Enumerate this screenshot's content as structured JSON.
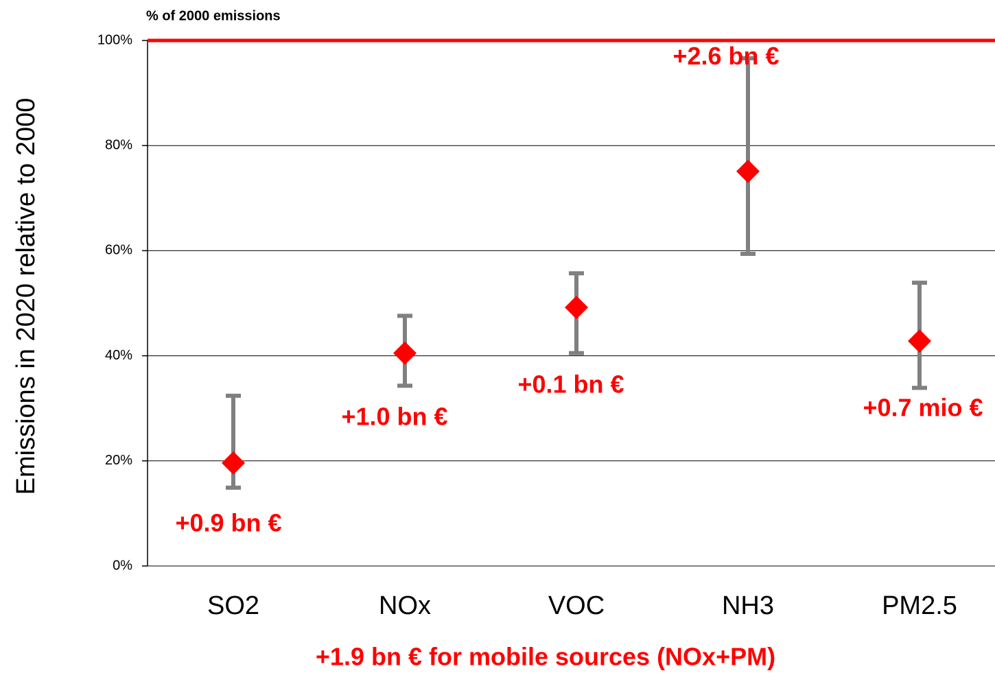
{
  "chart_data": {
    "type": "errorpoint",
    "subtitle": "% of 2000 emissions",
    "y_label": "Emissions in 2020 relative to 2000",
    "footer": "+1.9 bn € for mobile sources (NOx+PM)",
    "categories": [
      "SO2",
      "NOx",
      "VOC",
      "NH3",
      "PM2.5"
    ],
    "values": [
      19.6,
      40.5,
      49.2,
      75.1,
      42.8
    ],
    "range_low": [
      14.9,
      34.3,
      40.5,
      59.4,
      33.9
    ],
    "range_high": [
      32.4,
      47.6,
      55.7,
      96.6,
      53.9
    ],
    "annotations": [
      "+0.9 bn €",
      "+1.0 bn €",
      "+0.1 bn €",
      "+2.6 bn €",
      "+0.7 mio €"
    ],
    "color": "#ff0000",
    "error_color": "#808080",
    "reference_line": 100,
    "reference_color": "#ff0000",
    "ylim": [
      0,
      100
    ],
    "yticks": [
      {
        "value": 0,
        "label": "0%"
      },
      {
        "value": 20,
        "label": "20%"
      },
      {
        "value": 40,
        "label": "40%"
      },
      {
        "value": 60,
        "label": "60%"
      },
      {
        "value": 80,
        "label": "80%"
      },
      {
        "value": 100,
        "label": "100%"
      }
    ],
    "grid": true
  }
}
